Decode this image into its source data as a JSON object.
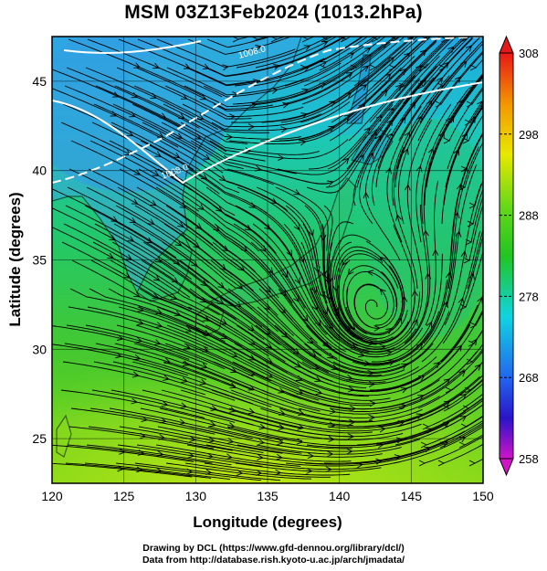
{
  "title": "MSM 03Z13Feb2024 (1013.2hPa)",
  "xlabel": "Longitude (degrees)",
  "ylabel": "Latitude  (degrees)",
  "xticks": [
    "120",
    "125",
    "130",
    "135",
    "140",
    "145",
    "150"
  ],
  "yticks": [
    "25",
    "30",
    "35",
    "40",
    "45"
  ],
  "x_range": [
    120,
    150
  ],
  "y_range": [
    22.5,
    47.5
  ],
  "colorbar": {
    "labels": [
      "308",
      "298",
      "288",
      "278",
      "268",
      "258"
    ],
    "range": [
      258,
      308
    ]
  },
  "contour_labels": [
    "1008.0",
    "1008.0"
  ],
  "credits": {
    "line1": "Drawing by DCL (https://www.gfd-dennou.org/library/dcl/)",
    "line2": "Data from http://database.rish.kyoto-u.ac.jp/arch/jmadata/"
  },
  "colors": {
    "frame": "#000000",
    "coastline": "#000000",
    "isobar": "#ffffff",
    "warm": "#e6e600",
    "mid": "#22c422",
    "cool": "#00c8c8"
  }
}
